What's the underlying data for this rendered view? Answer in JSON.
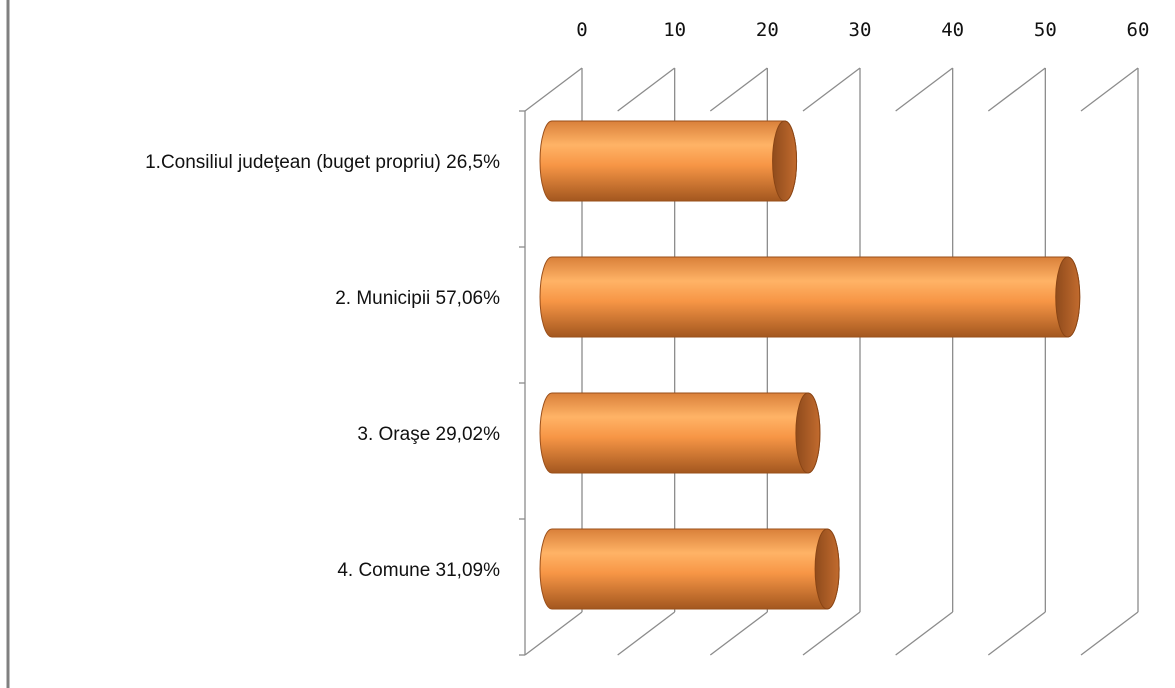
{
  "chart_data": {
    "type": "bar",
    "orientation": "horizontal",
    "style": "3d-cylinder",
    "title": "",
    "xlabel": "",
    "ylabel": "",
    "xlim": [
      0,
      60
    ],
    "x_ticks": [
      0,
      10,
      20,
      30,
      40,
      50,
      60
    ],
    "x_axis_position": "top",
    "grid": true,
    "legend": "none",
    "bar_color": "#F79646",
    "categories": [
      "1.Consiliul judeţean (buget propriu) 26,5%",
      "2. Municipii 57,06%",
      "3. Oraşe 29,02%",
      "4. Comune 31,09%"
    ],
    "values": [
      26.5,
      57.06,
      29.02,
      31.09
    ]
  }
}
